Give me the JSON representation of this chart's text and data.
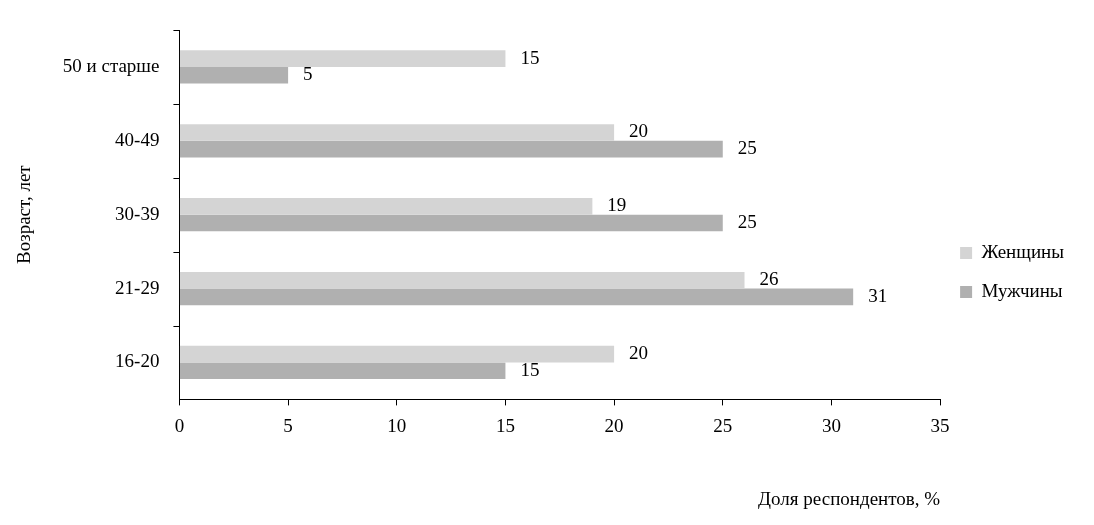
{
  "chart_data": {
    "type": "bar",
    "orientation": "horizontal",
    "xlabel": "Доля респондентов, %",
    "ylabel": "Возраст, лет",
    "categories": [
      "50 и старше",
      "40-49",
      "30-39",
      "21-29",
      "16-20"
    ],
    "series": [
      {
        "name": "Мужчины",
        "color": "#b0b0b0",
        "values": [
          5,
          25,
          25,
          31,
          15
        ]
      },
      {
        "name": "Женщины",
        "color": "#d4d4d4",
        "values": [
          15,
          20,
          19,
          26,
          20
        ]
      }
    ],
    "xlim": [
      0,
      35
    ],
    "xticks": [
      0,
      5,
      10,
      15,
      20,
      25,
      30,
      35
    ],
    "grid": false,
    "legend": "right",
    "data_labels": true
  }
}
